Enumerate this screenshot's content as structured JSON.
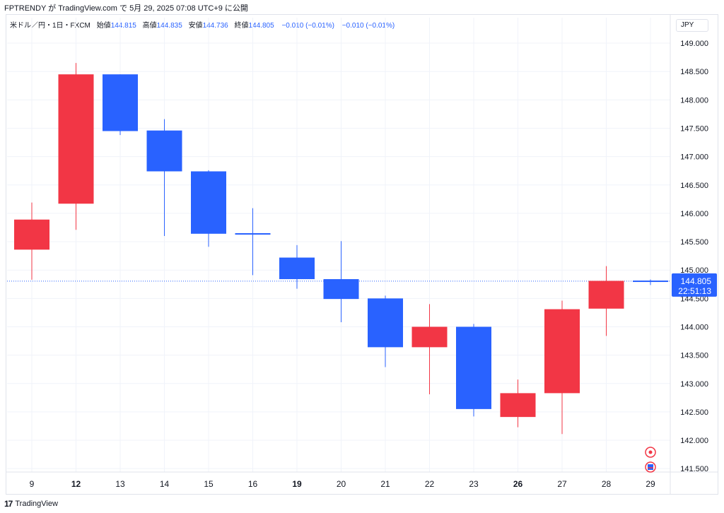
{
  "header": {
    "text": "FPTRENDY が TradingView.com で 5月 29, 2025 07:08 UTC+9 に公開"
  },
  "legend": {
    "symbol": "米ドル／円・1日・FXCM",
    "open_label": "始値",
    "open": "144.815",
    "high_label": "高値",
    "high": "144.835",
    "low_label": "安値",
    "low": "144.736",
    "close_label": "終値",
    "close": "144.805",
    "change": "−0.010 (−0.01%)",
    "change2": "−0.010 (−0.01%)"
  },
  "currency_button": "JPY",
  "price_label": {
    "price": "144.805",
    "countdown": "22:51:13"
  },
  "footer": {
    "brand": "TradingView",
    "logo": "17"
  },
  "colors": {
    "up": "#f23645",
    "down": "#2962ff",
    "grid": "#f0f3fa",
    "line": "#2962ff"
  },
  "chart_data": {
    "type": "candlestick",
    "ylim": [
      141.44,
      149.2
    ],
    "yticks": [
      149.0,
      148.5,
      148.0,
      147.5,
      147.0,
      146.5,
      146.0,
      145.5,
      145.0,
      144.5,
      144.0,
      143.5,
      143.0,
      142.5,
      142.0,
      141.5
    ],
    "ytick_labels": [
      "149.000",
      "148.500",
      "148.000",
      "147.500",
      "147.000",
      "146.500",
      "146.000",
      "145.500",
      "145.000",
      "144.500",
      "144.000",
      "143.500",
      "143.000",
      "142.500",
      "142.000",
      "141.500"
    ],
    "categories": [
      "9",
      "12",
      "13",
      "14",
      "15",
      "16",
      "19",
      "20",
      "21",
      "22",
      "23",
      "26",
      "27",
      "28",
      "29"
    ],
    "bold_categories": [
      "12",
      "19",
      "26"
    ],
    "candles": [
      {
        "o": 145.36,
        "h": 146.19,
        "l": 144.83,
        "c": 145.89
      },
      {
        "o": 146.17,
        "h": 148.65,
        "l": 145.71,
        "c": 148.45
      },
      {
        "o": 148.45,
        "h": 148.45,
        "l": 147.38,
        "c": 147.45
      },
      {
        "o": 147.46,
        "h": 147.66,
        "l": 145.6,
        "c": 146.74
      },
      {
        "o": 146.74,
        "h": 146.76,
        "l": 145.41,
        "c": 145.64
      },
      {
        "o": 145.65,
        "h": 146.09,
        "l": 144.91,
        "c": 145.63
      },
      {
        "o": 145.22,
        "h": 145.44,
        "l": 144.67,
        "c": 144.84
      },
      {
        "o": 144.84,
        "h": 145.51,
        "l": 144.08,
        "c": 144.49
      },
      {
        "o": 144.5,
        "h": 144.55,
        "l": 143.29,
        "c": 143.64
      },
      {
        "o": 143.64,
        "h": 144.4,
        "l": 142.81,
        "c": 144.0
      },
      {
        "o": 144.0,
        "h": 144.05,
        "l": 142.42,
        "c": 142.55
      },
      {
        "o": 142.41,
        "h": 143.07,
        "l": 142.23,
        "c": 142.83
      },
      {
        "o": 142.83,
        "h": 144.46,
        "l": 142.11,
        "c": 144.31
      },
      {
        "o": 144.32,
        "h": 145.07,
        "l": 143.84,
        "c": 144.81
      },
      {
        "o": 144.815,
        "h": 144.835,
        "l": 144.736,
        "c": 144.805
      }
    ],
    "last_price": 144.805
  }
}
